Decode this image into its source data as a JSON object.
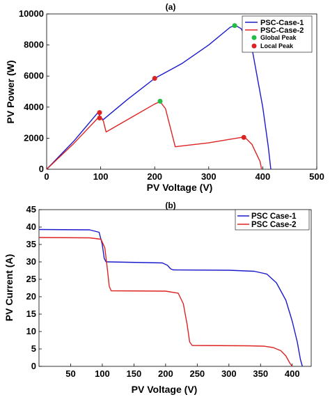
{
  "chart_data": [
    {
      "type": "line",
      "title": "(a)",
      "xlabel": "PV Voltage (V)",
      "ylabel": "PV Power (W)",
      "xlim": [
        0,
        500
      ],
      "ylim": [
        0,
        10000
      ],
      "xticks": [
        0,
        100,
        200,
        300,
        400,
        500
      ],
      "yticks": [
        0,
        2000,
        4000,
        6000,
        8000,
        10000
      ],
      "grid": false,
      "legend_position": "top-right",
      "series": [
        {
          "name": "PSC-Case-1",
          "color": "#1a1acc",
          "x": [
            0,
            50,
            95,
            100,
            105,
            150,
            200,
            250,
            300,
            340,
            350,
            360,
            380,
            400,
            410,
            415
          ],
          "y": [
            0,
            1800,
            3650,
            3300,
            3200,
            4500,
            5850,
            6800,
            8000,
            9150,
            9250,
            9050,
            7800,
            4000,
            1500,
            0
          ]
        },
        {
          "name": "PSC-Case-2",
          "color": "#dd2222",
          "x": [
            0,
            50,
            95,
            100,
            105,
            110,
            150,
            200,
            210,
            220,
            238,
            250,
            300,
            360,
            370,
            380,
            395,
            398
          ],
          "y": [
            0,
            1650,
            3300,
            3350,
            3100,
            2400,
            3200,
            4200,
            4350,
            3900,
            1450,
            1500,
            1700,
            2050,
            1950,
            1600,
            500,
            0
          ]
        }
      ],
      "markers": [
        {
          "name": "Global Peak",
          "color": "#22bb44",
          "points": [
            [
              348,
              9250
            ],
            [
              210,
              4380
            ]
          ]
        },
        {
          "name": "Local Peak",
          "color": "#dd2222",
          "points": [
            [
              98,
              3650
            ],
            [
              98,
              3300
            ],
            [
              200,
              5850
            ],
            [
              365,
              2050
            ]
          ]
        }
      ]
    },
    {
      "type": "line",
      "title": "(b)",
      "xlabel": "PV Voltage (V)",
      "ylabel": "PV Current (A)",
      "xlim": [
        0,
        430
      ],
      "ylim": [
        0,
        45
      ],
      "xticks": [
        50,
        100,
        150,
        200,
        250,
        300,
        350,
        400
      ],
      "yticks": [
        0,
        5,
        10,
        15,
        20,
        25,
        30,
        35,
        40,
        45
      ],
      "grid": false,
      "legend_position": "top-right",
      "series": [
        {
          "name": "PSC Case-1",
          "color": "#1a1acc",
          "x": [
            0,
            80,
            95,
            100,
            103,
            106,
            110,
            195,
            203,
            208,
            212,
            300,
            340,
            360,
            375,
            390,
            400,
            408,
            413,
            416
          ],
          "y": [
            39.3,
            39.2,
            38.5,
            35,
            31,
            30,
            30,
            29.7,
            29,
            28,
            27.7,
            27.6,
            27.3,
            26.5,
            24,
            19,
            13,
            7,
            2,
            0
          ]
        },
        {
          "name": "PSC Case-2",
          "color": "#dd2222",
          "x": [
            0,
            80,
            98,
            104,
            108,
            111,
            114,
            200,
            220,
            228,
            234,
            238,
            242,
            330,
            355,
            370,
            382,
            390,
            396,
            400
          ],
          "y": [
            37,
            36.9,
            36.5,
            34,
            28,
            23,
            21.7,
            21.6,
            21,
            18,
            12,
            7,
            6,
            5.9,
            5.8,
            5.4,
            4.5,
            3,
            1,
            0
          ]
        }
      ]
    }
  ]
}
